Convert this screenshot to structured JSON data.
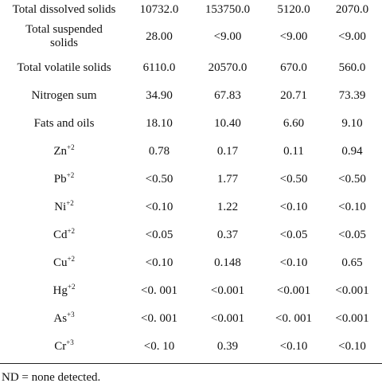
{
  "rows": [
    {
      "label": "Total dissolved solids",
      "values": [
        "10732.0",
        "153750.0",
        "5120.0",
        "2070.0"
      ]
    },
    {
      "label": "Total suspended solids",
      "values": [
        "28.00",
        "<9.00",
        "<9.00",
        "<9.00"
      ]
    },
    {
      "label": "Total volatile solids",
      "values": [
        "6110.0",
        "20570.0",
        "670.0",
        "560.0"
      ]
    },
    {
      "label": "Nitrogen sum",
      "values": [
        "34.90",
        "67.83",
        "20.71",
        "73.39"
      ]
    },
    {
      "label": "Fats and oils",
      "values": [
        "18.10",
        "10.40",
        "6.60",
        "9.10"
      ]
    },
    {
      "label_base": "Zn",
      "label_sup": "+2",
      "values": [
        "0.78",
        "0.17",
        "0.11",
        "0.94"
      ]
    },
    {
      "label_base": "Pb",
      "label_sup": "+2",
      "values": [
        "<0.50",
        "1.77",
        "<0.50",
        "<0.50"
      ]
    },
    {
      "label_base": "Ni",
      "label_sup": "+2",
      "values": [
        "<0.10",
        "1.22",
        "<0.10",
        "<0.10"
      ]
    },
    {
      "label_base": "Cd",
      "label_sup": "+2",
      "values": [
        "<0.05",
        "0.37",
        "<0.05",
        "<0.05"
      ]
    },
    {
      "label_base": "Cu",
      "label_sup": "+2",
      "values": [
        "<0.10",
        "0.148",
        "<0.10",
        "0.65"
      ]
    },
    {
      "label_base": "Hg",
      "label_sup": "+2",
      "values": [
        "<0. 001",
        "<0.001",
        "<0.001",
        "<0.001"
      ]
    },
    {
      "label_base": "As",
      "label_sup": "+3",
      "values": [
        "<0. 001",
        "<0.001",
        "<0. 001",
        "<0.001"
      ]
    },
    {
      "label_base": "Cr",
      "label_sup": "+3",
      "values": [
        "<0. 10",
        "0.39",
        "<0.10",
        "<0.10"
      ]
    }
  ],
  "footnote": "ND = none detected."
}
